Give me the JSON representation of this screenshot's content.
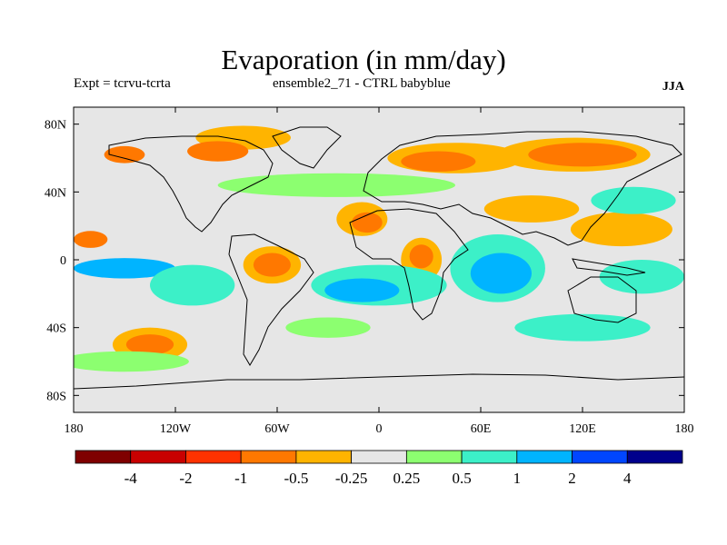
{
  "header": {
    "title": "Evaporation (in mm/day)",
    "left_label": "Expt = tcrvu-tcrta",
    "center_label": "ensemble2_71 - CTRL babyblue",
    "right_label": "JJA"
  },
  "map": {
    "projection": "cylindrical-equidistant",
    "lon_range": [
      -180,
      180
    ],
    "lat_range": [
      -90,
      90
    ],
    "background_color": "#e6e6e6",
    "lat_ticks": [
      {
        "value": 80,
        "label": "80N"
      },
      {
        "value": 40,
        "label": "40N"
      },
      {
        "value": 0,
        "label": "0"
      },
      {
        "value": -40,
        "label": "40S"
      },
      {
        "value": -80,
        "label": "80S"
      }
    ],
    "lon_ticks": [
      {
        "value": -180,
        "label": "180"
      },
      {
        "value": -120,
        "label": "120W"
      },
      {
        "value": -60,
        "label": "60W"
      },
      {
        "value": 0,
        "label": "0"
      },
      {
        "value": 60,
        "label": "60E"
      },
      {
        "value": 120,
        "label": "120E"
      },
      {
        "value": 180,
        "label": "180"
      }
    ]
  },
  "colorbar": {
    "colors": [
      "#7f0000",
      "#c80000",
      "#ff3200",
      "#ff7800",
      "#ffb400",
      "#e6e6e6",
      "#8cff70",
      "#3cf0c8",
      "#00b4ff",
      "#0046ff",
      "#00008c"
    ],
    "labels": [
      "-4",
      "-2",
      "-1",
      "-0.5",
      "-0.25",
      "0.25",
      "0.5",
      "1",
      "2",
      "4"
    ]
  },
  "anomaly_regions": [
    {
      "lon": -80,
      "lat": 72,
      "rx": 28,
      "ry": 7,
      "color": "#ffb400"
    },
    {
      "lon": -95,
      "lat": 64,
      "rx": 18,
      "ry": 6,
      "color": "#ff7800"
    },
    {
      "lon": -150,
      "lat": 62,
      "rx": 12,
      "ry": 5,
      "color": "#ff7800"
    },
    {
      "lon": 45,
      "lat": 60,
      "rx": 40,
      "ry": 9,
      "color": "#ffb400"
    },
    {
      "lon": 35,
      "lat": 58,
      "rx": 22,
      "ry": 6,
      "color": "#ff7800"
    },
    {
      "lon": 115,
      "lat": 62,
      "rx": 45,
      "ry": 10,
      "color": "#ffb400"
    },
    {
      "lon": 120,
      "lat": 62,
      "rx": 32,
      "ry": 7,
      "color": "#ff7800"
    },
    {
      "lon": -25,
      "lat": 44,
      "rx": 70,
      "ry": 7,
      "color": "#8cff70"
    },
    {
      "lon": -10,
      "lat": 24,
      "rx": 15,
      "ry": 10,
      "color": "#ffb400"
    },
    {
      "lon": -7,
      "lat": 22,
      "rx": 9,
      "ry": 6,
      "color": "#ff7800"
    },
    {
      "lon": -63,
      "lat": -3,
      "rx": 17,
      "ry": 11,
      "color": "#ffb400"
    },
    {
      "lon": -63,
      "lat": -3,
      "rx": 11,
      "ry": 7,
      "color": "#ff7800"
    },
    {
      "lon": 25,
      "lat": 0,
      "rx": 12,
      "ry": 13,
      "color": "#ffb400"
    },
    {
      "lon": 25,
      "lat": 2,
      "rx": 7,
      "ry": 7,
      "color": "#ff7800"
    },
    {
      "lon": 90,
      "lat": 30,
      "rx": 28,
      "ry": 8,
      "color": "#ffb400"
    },
    {
      "lon": 143,
      "lat": 18,
      "rx": 30,
      "ry": 10,
      "color": "#ffb400"
    },
    {
      "lon": -135,
      "lat": -50,
      "rx": 22,
      "ry": 10,
      "color": "#ffb400"
    },
    {
      "lon": -135,
      "lat": -50,
      "rx": 14,
      "ry": 6,
      "color": "#ff7800"
    },
    {
      "lon": -150,
      "lat": -60,
      "rx": 38,
      "ry": 6,
      "color": "#8cff70"
    },
    {
      "lon": 0,
      "lat": -15,
      "rx": 40,
      "ry": 12,
      "color": "#3cf0c8"
    },
    {
      "lon": -10,
      "lat": -18,
      "rx": 22,
      "ry": 7,
      "color": "#00b4ff"
    },
    {
      "lon": 70,
      "lat": -5,
      "rx": 28,
      "ry": 20,
      "color": "#3cf0c8"
    },
    {
      "lon": 72,
      "lat": -8,
      "rx": 18,
      "ry": 12,
      "color": "#00b4ff"
    },
    {
      "lon": -150,
      "lat": -5,
      "rx": 30,
      "ry": 6,
      "color": "#00b4ff"
    },
    {
      "lon": -110,
      "lat": -15,
      "rx": 25,
      "ry": 12,
      "color": "#3cf0c8"
    },
    {
      "lon": 155,
      "lat": -10,
      "rx": 25,
      "ry": 10,
      "color": "#3cf0c8"
    },
    {
      "lon": 120,
      "lat": -40,
      "rx": 40,
      "ry": 8,
      "color": "#3cf0c8"
    },
    {
      "lon": -30,
      "lat": -40,
      "rx": 25,
      "ry": 6,
      "color": "#8cff70"
    },
    {
      "lon": 150,
      "lat": 35,
      "rx": 25,
      "ry": 8,
      "color": "#3cf0c8"
    },
    {
      "lon": -170,
      "lat": 12,
      "rx": 10,
      "ry": 5,
      "color": "#ff7800"
    }
  ]
}
